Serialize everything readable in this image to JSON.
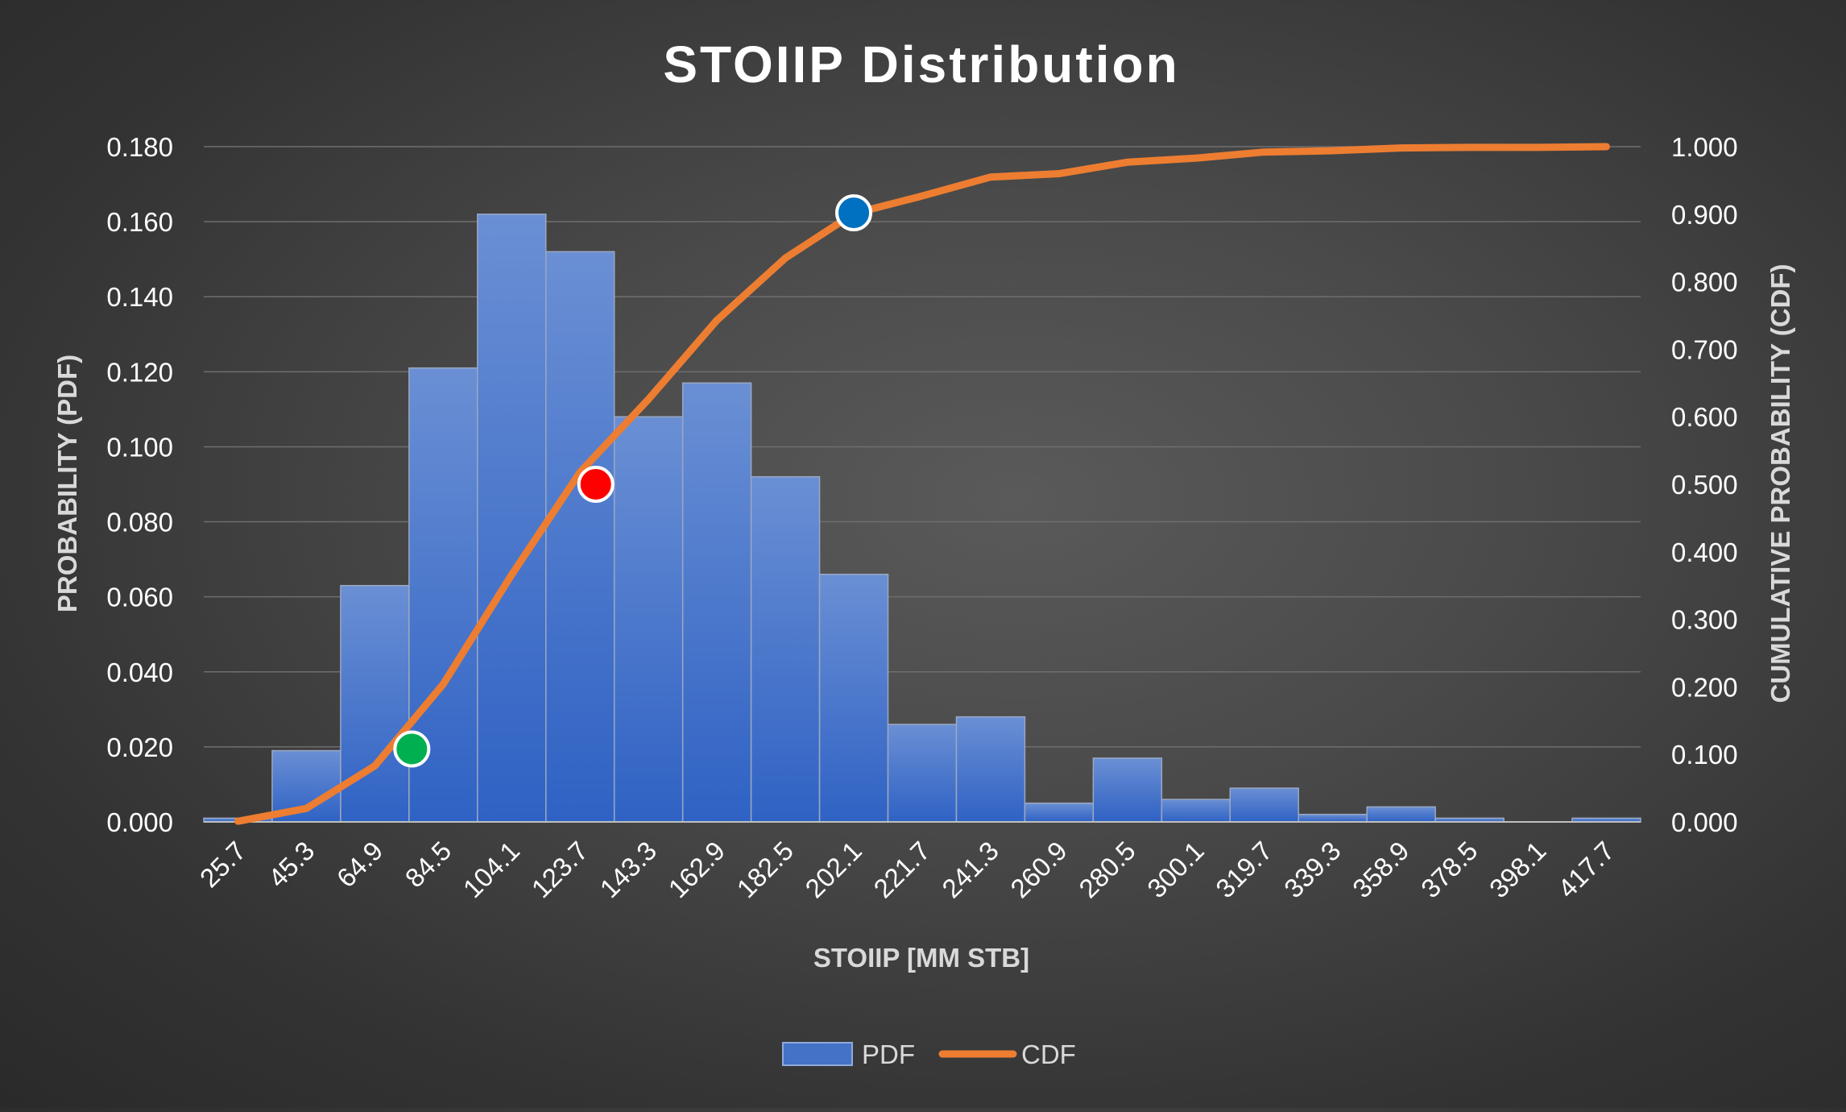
{
  "chart_data": {
    "type": "bar",
    "title": "STOIIP Distribution",
    "xlabel": "STOIIP [MM STB]",
    "ylabel": "PROBABILITY (PDF)",
    "y2label": "CUMULATIVE PROBABILITY (CDF)",
    "categories": [
      "25.7",
      "45.3",
      "64.9",
      "84.5",
      "104.1",
      "123.7",
      "143.3",
      "162.9",
      "182.5",
      "202.1",
      "221.7",
      "241.3",
      "260.9",
      "280.5",
      "300.1",
      "319.7",
      "339.3",
      "358.9",
      "378.5",
      "398.1",
      "417.7"
    ],
    "ylim": [
      0,
      0.18
    ],
    "y_ticks": [
      "0.000",
      "0.020",
      "0.040",
      "0.060",
      "0.080",
      "0.100",
      "0.120",
      "0.140",
      "0.160",
      "0.180"
    ],
    "y2lim": [
      0,
      1.0
    ],
    "y2_ticks": [
      "0.000",
      "0.100",
      "0.200",
      "0.300",
      "0.400",
      "0.500",
      "0.600",
      "0.700",
      "0.800",
      "0.900",
      "1.000"
    ],
    "grid": true,
    "legend_position": "bottom",
    "series": [
      {
        "name": "PDF",
        "type": "bar",
        "axis": "left",
        "color": "#4472c4",
        "values": [
          0.001,
          0.019,
          0.063,
          0.121,
          0.162,
          0.152,
          0.108,
          0.117,
          0.092,
          0.066,
          0.026,
          0.028,
          0.005,
          0.017,
          0.006,
          0.009,
          0.002,
          0.004,
          0.001,
          0.0,
          0.001
        ]
      },
      {
        "name": "CDF",
        "type": "line",
        "axis": "right",
        "color": "#ed7d31",
        "values": [
          0.001,
          0.02,
          0.083,
          0.204,
          0.366,
          0.518,
          0.626,
          0.743,
          0.835,
          0.901,
          0.927,
          0.955,
          0.96,
          0.977,
          0.983,
          0.992,
          0.994,
          0.998,
          0.999,
          0.999,
          1.0
        ]
      }
    ],
    "markers": [
      {
        "x": 75.5,
        "y": 0.108,
        "color": "#00b050"
      },
      {
        "x": 128.2,
        "y": 0.5,
        "color": "#ff0000"
      },
      {
        "x": 202.1,
        "y": 0.902,
        "color": "#0070c0"
      }
    ]
  }
}
